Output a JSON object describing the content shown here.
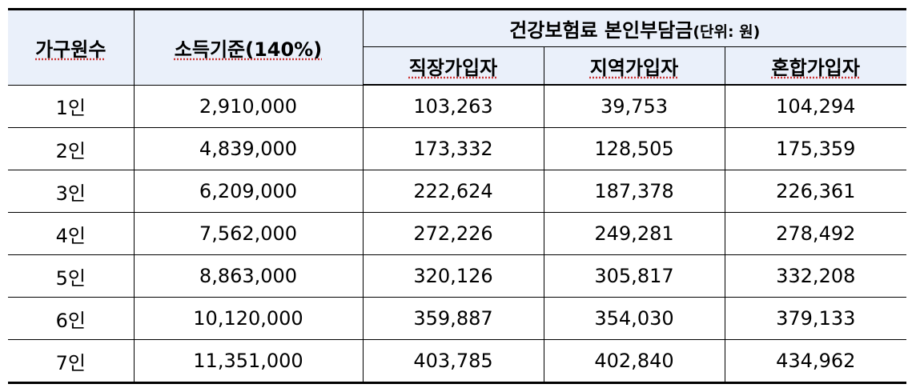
{
  "header": {
    "household": "가구원수",
    "income": "소득기준(140%)",
    "premium_group": "건강보험료 본인부담금",
    "premium_unit": "(단위: 원)",
    "col_employee": "직장가입자",
    "col_regional": "지역가입자",
    "col_mixed": "혼합가입자"
  },
  "rows": [
    {
      "household": "1인",
      "income": "2,910,000",
      "employee": "103,263",
      "regional": "39,753",
      "mixed": "104,294"
    },
    {
      "household": "2인",
      "income": "4,839,000",
      "employee": "173,332",
      "regional": "128,505",
      "mixed": "175,359"
    },
    {
      "household": "3인",
      "income": "6,209,000",
      "employee": "222,624",
      "regional": "187,378",
      "mixed": "226,361"
    },
    {
      "household": "4인",
      "income": "7,562,000",
      "employee": "272,226",
      "regional": "249,281",
      "mixed": "278,492"
    },
    {
      "household": "5인",
      "income": "8,863,000",
      "employee": "320,126",
      "regional": "305,817",
      "mixed": "332,208"
    },
    {
      "household": "6인",
      "income": "10,120,000",
      "employee": "359,887",
      "regional": "354,030",
      "mixed": "379,133"
    },
    {
      "household": "7인",
      "income": "11,351,000",
      "employee": "403,785",
      "regional": "402,840",
      "mixed": "434,962"
    }
  ],
  "colors": {
    "header_bg": "#eaf0fa",
    "border": "#000000",
    "spell_underline": "#cc3333"
  }
}
